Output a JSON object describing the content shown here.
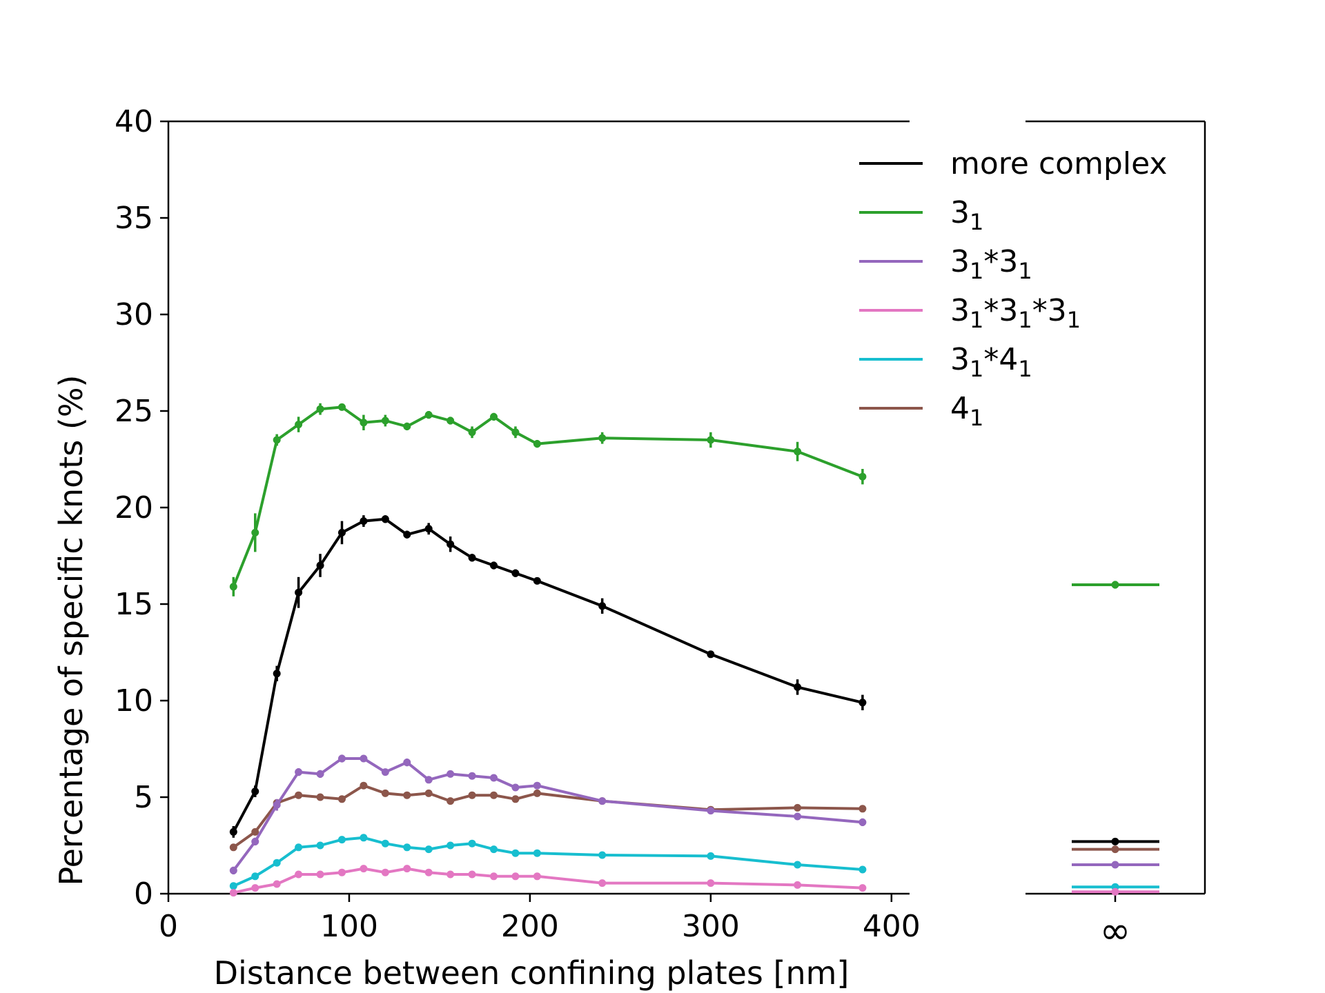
{
  "chart_data": {
    "type": "line",
    "title": "",
    "xlabel": "Distance between confining plates [nm]",
    "ylabel": "Percentage of specific knots (%)",
    "xlim": [
      0,
      410
    ],
    "ylim": [
      0,
      40
    ],
    "xticks": [
      0,
      100,
      200,
      300,
      400
    ],
    "yticks": [
      0,
      5,
      10,
      15,
      20,
      25,
      30,
      35,
      40
    ],
    "infinity_label": "∞",
    "legend_position": "top-right",
    "grid": false,
    "x": [
      36,
      48,
      60,
      72,
      84,
      96,
      108,
      120,
      132,
      144,
      156,
      168,
      180,
      192,
      204,
      240,
      300,
      348,
      384
    ],
    "series": [
      {
        "name": "more complex",
        "legend_base": "more complex",
        "legend_sub": [],
        "color": "#000000",
        "values": [
          3.2,
          5.3,
          11.4,
          15.6,
          17.0,
          18.7,
          19.3,
          19.4,
          18.6,
          18.9,
          18.1,
          17.4,
          17.0,
          16.6,
          16.2,
          14.9,
          12.4,
          10.7,
          9.9
        ],
        "errors": [
          0.3,
          0.3,
          0.4,
          0.8,
          0.6,
          0.6,
          0.3,
          0.2,
          0.2,
          0.3,
          0.4,
          0.2,
          0.2,
          0.2,
          0.1,
          0.4,
          0.1,
          0.4,
          0.4
        ],
        "infinity_value": 2.7,
        "infinity_error": 0.1
      },
      {
        "name": "3_1",
        "legend_base": "3",
        "legend_sub": [
          "1"
        ],
        "color": "#2ca02c",
        "values": [
          15.9,
          18.7,
          23.5,
          24.3,
          25.1,
          25.2,
          24.4,
          24.5,
          24.2,
          24.8,
          24.5,
          23.9,
          24.7,
          23.9,
          23.3,
          23.6,
          23.5,
          22.9,
          21.6
        ],
        "errors": [
          0.5,
          1.0,
          0.3,
          0.4,
          0.3,
          0.1,
          0.4,
          0.3,
          0.2,
          0.2,
          0.2,
          0.3,
          0.2,
          0.3,
          0.2,
          0.3,
          0.4,
          0.5,
          0.4
        ],
        "infinity_value": 16.0,
        "infinity_error": 0.2
      },
      {
        "name": "3_1*3_1",
        "legend_base": "3*3",
        "legend_sub": [
          "1",
          "1"
        ],
        "color": "#9467bd",
        "values": [
          1.2,
          2.7,
          4.6,
          6.3,
          6.2,
          7.0,
          7.0,
          6.3,
          6.8,
          5.9,
          6.2,
          6.1,
          6.0,
          5.5,
          5.6,
          4.8,
          4.3,
          4.0,
          3.7
        ],
        "errors": [
          0.2,
          0.2,
          0.3,
          0.2,
          0.2,
          0.2,
          0.1,
          0.1,
          0.2,
          0.1,
          0.1,
          0.1,
          0.1,
          0.1,
          0.1,
          0.1,
          0.1,
          0.1,
          0.2
        ],
        "infinity_value": 1.5,
        "infinity_error": 0.1
      },
      {
        "name": "3_1*3_1*3_1",
        "legend_base": "3*3*3",
        "legend_sub": [
          "1",
          "1",
          "1"
        ],
        "color": "#e377c2",
        "values": [
          0.05,
          0.3,
          0.5,
          1.0,
          1.0,
          1.1,
          1.3,
          1.1,
          1.3,
          1.1,
          1.0,
          1.0,
          0.9,
          0.9,
          0.9,
          0.55,
          0.55,
          0.45,
          0.3
        ],
        "errors": [
          0.05,
          0.05,
          0.05,
          0.05,
          0.05,
          0.05,
          0.05,
          0.05,
          0.05,
          0.05,
          0.05,
          0.05,
          0.05,
          0.05,
          0.05,
          0.05,
          0.05,
          0.05,
          0.05
        ],
        "infinity_value": 0.1,
        "infinity_error": 0.05
      },
      {
        "name": "3_1*4_1",
        "legend_base": "3*4",
        "legend_sub": [
          "1",
          "1"
        ],
        "color": "#17becf",
        "values": [
          0.4,
          0.9,
          1.6,
          2.4,
          2.5,
          2.8,
          2.9,
          2.6,
          2.4,
          2.3,
          2.5,
          2.6,
          2.3,
          2.1,
          2.1,
          2.0,
          1.95,
          1.5,
          1.25
        ],
        "errors": [
          0.05,
          0.05,
          0.05,
          0.05,
          0.05,
          0.05,
          0.05,
          0.05,
          0.05,
          0.05,
          0.05,
          0.05,
          0.05,
          0.05,
          0.05,
          0.05,
          0.05,
          0.05,
          0.05
        ],
        "infinity_value": 0.35,
        "infinity_error": 0.05
      },
      {
        "name": "4_1",
        "legend_base": "4",
        "legend_sub": [
          "1"
        ],
        "color": "#8c564b",
        "values": [
          2.4,
          3.2,
          4.7,
          5.1,
          5.0,
          4.9,
          5.6,
          5.2,
          5.1,
          5.2,
          4.8,
          5.1,
          5.1,
          4.9,
          5.2,
          4.8,
          4.35,
          4.45,
          4.4
        ],
        "errors": [
          0.1,
          0.1,
          0.1,
          0.1,
          0.1,
          0.1,
          0.1,
          0.1,
          0.1,
          0.1,
          0.1,
          0.1,
          0.1,
          0.1,
          0.1,
          0.1,
          0.1,
          0.1,
          0.1
        ],
        "infinity_value": 2.3,
        "infinity_error": 0.05
      }
    ]
  }
}
